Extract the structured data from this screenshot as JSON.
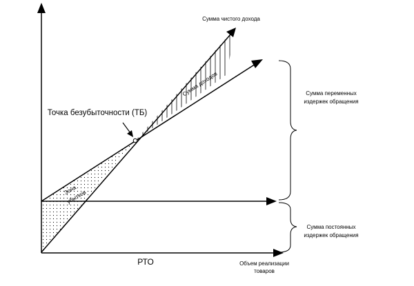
{
  "diagram": {
    "breakeven_label": "Точка безубыточности (ТБ)",
    "net_income_label": "Сумма чистого дохода",
    "income_line_label": "Сумма доходов",
    "loss_zone_line1": "Зона",
    "loss_zone_line2": "убытков",
    "variable_costs_line1": "Сумма переменных",
    "variable_costs_line2": "издержек обращения",
    "fixed_costs_line1": "Сумма постоянных",
    "fixed_costs_line2": "издержек обращения",
    "x_axis_line1": "Объем реализации",
    "x_axis_line2": "товаров",
    "pto_label": "РТО"
  },
  "colors": {
    "stroke": "#000000",
    "background": "#ffffff"
  }
}
